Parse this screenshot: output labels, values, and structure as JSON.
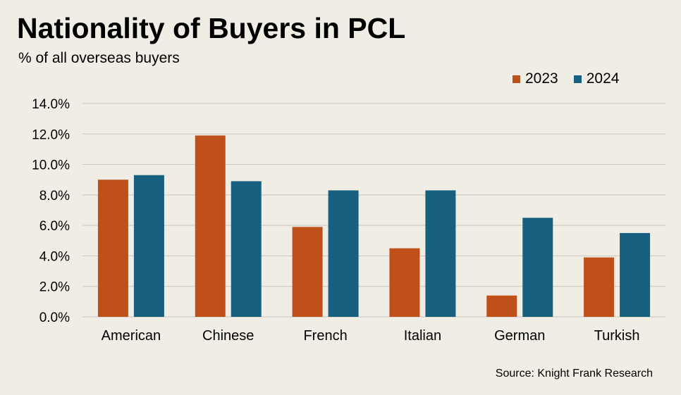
{
  "title": "Nationality of Buyers in PCL",
  "subtitle": "% of all overseas buyers",
  "source": "Source: Knight Frank Research",
  "colors": {
    "background": "#f0eee4",
    "series_2023": "#c0501a",
    "series_2024": "#17607f",
    "grid": "#c8c6bc"
  },
  "chart_data": {
    "type": "bar",
    "categories": [
      "American",
      "Chinese",
      "French",
      "Italian",
      "German",
      "Turkish"
    ],
    "series": [
      {
        "name": "2023",
        "values": [
          9.0,
          11.9,
          5.9,
          4.5,
          1.4,
          3.9
        ]
      },
      {
        "name": "2024",
        "values": [
          9.3,
          8.9,
          8.3,
          8.3,
          6.5,
          5.5
        ]
      }
    ],
    "ylim": [
      0,
      14
    ],
    "ytick_step": 2,
    "ytick_labels": [
      "0.0%",
      "2.0%",
      "4.0%",
      "6.0%",
      "8.0%",
      "10.0%",
      "12.0%",
      "14.0%"
    ],
    "legend_position": "top-right",
    "grid": true
  }
}
